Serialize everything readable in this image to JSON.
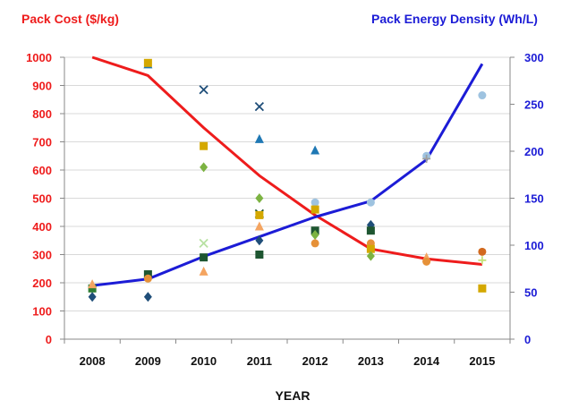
{
  "chart_data": {
    "type": "line",
    "y_left_title": "Pack Cost ($/kg)",
    "y_right_title": "Pack Energy Density (Wh/L)",
    "xlabel": "YEAR",
    "x": [
      "2008",
      "2009",
      "2010",
      "2011",
      "2012",
      "2013",
      "2014",
      "2015"
    ],
    "ylim_left": [
      0,
      1000
    ],
    "ylim_right": [
      0,
      300
    ],
    "y_left_ticks": [
      0,
      100,
      200,
      300,
      400,
      500,
      600,
      700,
      800,
      900,
      1000
    ],
    "y_right_ticks": [
      0,
      50,
      100,
      150,
      200,
      250,
      300
    ],
    "grid": true,
    "colors": {
      "cost": "#ee1c1c",
      "density": "#1c1cd6",
      "left_axis_text": "#ee1c1c",
      "right_axis_text": "#1c1cd6",
      "grid": "#d9d9d9"
    },
    "cost_curve": {
      "axis": "left",
      "x": [
        2008.0,
        2009.0,
        2010.0,
        2011.0,
        2012.0,
        2013.0,
        2014.0,
        2015.0
      ],
      "y": [
        1000,
        935,
        750,
        580,
        440,
        320,
        285,
        265
      ]
    },
    "density_curve": {
      "axis": "right",
      "x": [
        2008.0,
        2009.0,
        2010.0,
        2011.0,
        2012.0,
        2013.0,
        2014.0,
        2015.0
      ],
      "y": [
        57,
        64,
        88,
        109,
        130,
        147,
        191,
        293
      ]
    },
    "scatter_points": [
      {
        "x": 2008.0,
        "y": 150,
        "axis": "left",
        "marker": "diamond",
        "color": "#1f4e79"
      },
      {
        "x": 2008.0,
        "y": 180,
        "axis": "left",
        "marker": "square",
        "color": "#2e7d32"
      },
      {
        "x": 2008.0,
        "y": 195,
        "axis": "left",
        "marker": "triangle",
        "color": "#f4a460"
      },
      {
        "x": 2009.0,
        "y": 150,
        "axis": "left",
        "marker": "diamond",
        "color": "#1f4e79"
      },
      {
        "x": 2009.0,
        "y": 230,
        "axis": "left",
        "marker": "square",
        "color": "#1e5631"
      },
      {
        "x": 2009.0,
        "y": 215,
        "axis": "left",
        "marker": "circle",
        "color": "#e69138"
      },
      {
        "x": 2009.0,
        "y": 975,
        "axis": "left",
        "marker": "triangle",
        "color": "#1f78b4"
      },
      {
        "x": 2009.0,
        "y": 980,
        "axis": "left",
        "marker": "square",
        "color": "#d4a800"
      },
      {
        "x": 2010.0,
        "y": 885,
        "axis": "left",
        "marker": "x",
        "color": "#1f4e79"
      },
      {
        "x": 2010.0,
        "y": 685,
        "axis": "left",
        "marker": "square",
        "color": "#d4a800"
      },
      {
        "x": 2010.0,
        "y": 610,
        "axis": "left",
        "marker": "diamond",
        "color": "#7cb342"
      },
      {
        "x": 2010.0,
        "y": 340,
        "axis": "left",
        "marker": "x",
        "color": "#b7e1a1"
      },
      {
        "x": 2010.0,
        "y": 290,
        "axis": "left",
        "marker": "square",
        "color": "#1e5631"
      },
      {
        "x": 2010.0,
        "y": 240,
        "axis": "left",
        "marker": "triangle",
        "color": "#f4a460"
      },
      {
        "x": 2011.0,
        "y": 825,
        "axis": "left",
        "marker": "x",
        "color": "#1f4e79"
      },
      {
        "x": 2011.0,
        "y": 710,
        "axis": "left",
        "marker": "triangle",
        "color": "#1f78b4"
      },
      {
        "x": 2011.0,
        "y": 500,
        "axis": "left",
        "marker": "diamond",
        "color": "#7cb342"
      },
      {
        "x": 2011.0,
        "y": 445,
        "axis": "left",
        "marker": "x",
        "color": "#1e5631"
      },
      {
        "x": 2011.0,
        "y": 440,
        "axis": "left",
        "marker": "square",
        "color": "#d4a800"
      },
      {
        "x": 2011.0,
        "y": 400,
        "axis": "left",
        "marker": "triangle",
        "color": "#f4a460"
      },
      {
        "x": 2011.0,
        "y": 350,
        "axis": "left",
        "marker": "diamond",
        "color": "#1f4e79"
      },
      {
        "x": 2011.0,
        "y": 300,
        "axis": "left",
        "marker": "square",
        "color": "#1e5631"
      },
      {
        "x": 2012.0,
        "y": 670,
        "axis": "left",
        "marker": "triangle",
        "color": "#1f78b4"
      },
      {
        "x": 2012.0,
        "y": 485,
        "axis": "left",
        "marker": "circle",
        "color": "#9ec3e0"
      },
      {
        "x": 2012.0,
        "y": 460,
        "axis": "left",
        "marker": "square",
        "color": "#d4a800"
      },
      {
        "x": 2012.0,
        "y": 385,
        "axis": "left",
        "marker": "square",
        "color": "#1e5631"
      },
      {
        "x": 2012.0,
        "y": 370,
        "axis": "left",
        "marker": "diamond",
        "color": "#7cb342"
      },
      {
        "x": 2012.0,
        "y": 340,
        "axis": "left",
        "marker": "circle",
        "color": "#e69138"
      },
      {
        "x": 2013.0,
        "y": 485,
        "axis": "left",
        "marker": "circle",
        "color": "#9ec3e0"
      },
      {
        "x": 2013.0,
        "y": 405,
        "axis": "left",
        "marker": "diamond",
        "color": "#1f4e79"
      },
      {
        "x": 2013.0,
        "y": 385,
        "axis": "left",
        "marker": "square",
        "color": "#1e5631"
      },
      {
        "x": 2013.0,
        "y": 340,
        "axis": "left",
        "marker": "circle",
        "color": "#e69138"
      },
      {
        "x": 2013.0,
        "y": 320,
        "axis": "left",
        "marker": "square",
        "color": "#d4a800"
      },
      {
        "x": 2013.0,
        "y": 295,
        "axis": "left",
        "marker": "diamond",
        "color": "#7cb342"
      },
      {
        "x": 2014.0,
        "y": 650,
        "axis": "left",
        "marker": "circle",
        "color": "#9ec3e0"
      },
      {
        "x": 2014.0,
        "y": 640,
        "axis": "left",
        "marker": "plus",
        "color": "#9e9e9e"
      },
      {
        "x": 2014.0,
        "y": 290,
        "axis": "left",
        "marker": "triangle",
        "color": "#f4a460"
      },
      {
        "x": 2014.0,
        "y": 275,
        "axis": "left",
        "marker": "circle",
        "color": "#e69138"
      },
      {
        "x": 2015.0,
        "y": 865,
        "axis": "left",
        "marker": "circle",
        "color": "#9ec3e0"
      },
      {
        "x": 2015.0,
        "y": 310,
        "axis": "left",
        "marker": "circle",
        "color": "#d2691e"
      },
      {
        "x": 2015.0,
        "y": 280,
        "axis": "left",
        "marker": "plus",
        "color": "#c5e17a"
      },
      {
        "x": 2015.0,
        "y": 180,
        "axis": "left",
        "marker": "square",
        "color": "#d4a800"
      }
    ]
  }
}
